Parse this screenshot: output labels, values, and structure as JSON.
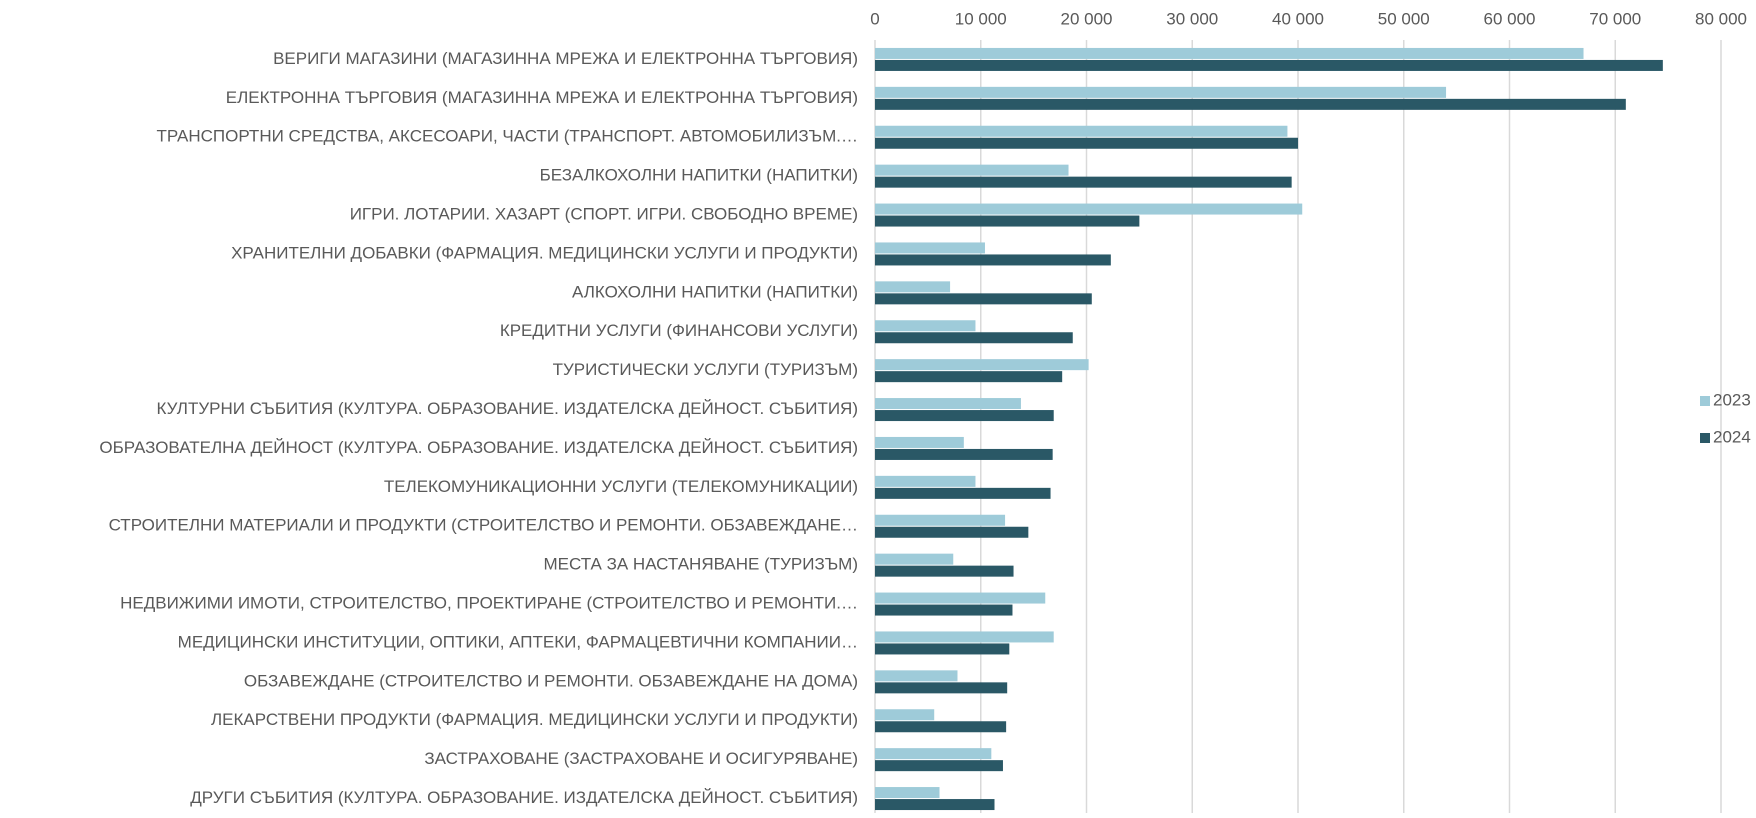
{
  "chart_data": {
    "type": "bar",
    "orientation": "horizontal",
    "categories": [
      "ВЕРИГИ МАГАЗИНИ (МАГАЗИННА МРЕЖА И ЕЛЕКТРОННА ТЪРГОВИЯ)",
      "ЕЛЕКТРОННА ТЪРГОВИЯ (МАГАЗИННА МРЕЖА И ЕЛЕКТРОННА ТЪРГОВИЯ)",
      "ТРАНСПОРТНИ СРЕДСТВА, АКСЕСОАРИ, ЧАСТИ (ТРАНСПОРТ. АВТОМОБИЛИЗЪМ.…",
      "БЕЗАЛКОХОЛНИ НАПИТКИ (НАПИТКИ)",
      "ИГРИ. ЛОТАРИИ. ХАЗАРТ (СПОРТ. ИГРИ. СВОБОДНО ВРЕМЕ)",
      "ХРАНИТЕЛНИ ДОБАВКИ (ФАРМАЦИЯ. МЕДИЦИНСКИ УСЛУГИ И ПРОДУКТИ)",
      "АЛКОХОЛНИ НАПИТКИ (НАПИТКИ)",
      "КРЕДИТНИ УСЛУГИ (ФИНАНСОВИ УСЛУГИ)",
      "ТУРИСТИЧЕСКИ УСЛУГИ (ТУРИЗЪМ)",
      "КУЛТУРНИ СЪБИТИЯ (КУЛТУРА. ОБРАЗОВАНИЕ. ИЗДАТЕЛСКА ДЕЙНОСТ. СЪБИТИЯ)",
      "ОБРАЗОВАТЕЛНА ДЕЙНОСТ (КУЛТУРА. ОБРАЗОВАНИЕ. ИЗДАТЕЛСКА ДЕЙНОСТ. СЪБИТИЯ)",
      "ТЕЛЕКОМУНИКАЦИОННИ УСЛУГИ (ТЕЛЕКОМУНИКАЦИИ)",
      "СТРОИТЕЛНИ МАТЕРИАЛИ И ПРОДУКТИ (СТРОИТЕЛСТВО И РЕМОНТИ. ОБЗАВЕЖДАНЕ…",
      "МЕСТА ЗА НАСТАНЯВАНЕ (ТУРИЗЪМ)",
      "НЕДВИЖИМИ ИМОТИ, СТРОИТЕЛСТВО, ПРОЕКТИРАНЕ (СТРОИТЕЛСТВО И РЕМОНТИ.…",
      "МЕДИЦИНСКИ ИНСТИТУЦИИ, ОПТИКИ, АПТЕКИ, ФАРМАЦЕВТИЧНИ КОМПАНИИ…",
      "ОБЗАВЕЖДАНЕ (СТРОИТЕЛСТВО И РЕМОНТИ. ОБЗАВЕЖДАНЕ НА ДОМА)",
      "ЛЕКАРСТВЕНИ ПРОДУКТИ (ФАРМАЦИЯ. МЕДИЦИНСКИ УСЛУГИ И ПРОДУКТИ)",
      "ЗАСТРАХОВАНЕ (ЗАСТРАХОВАНЕ И ОСИГУРЯВАНЕ)",
      "ДРУГИ СЪБИТИЯ (КУЛТУРА. ОБРАЗОВАНИЕ. ИЗДАТЕЛСКА ДЕЙНОСТ. СЪБИТИЯ)"
    ],
    "series": [
      {
        "name": "2023",
        "color": "#9ecbd9",
        "values": [
          67000,
          54000,
          39000,
          18300,
          40400,
          10400,
          7100,
          9500,
          20200,
          13800,
          8400,
          9500,
          12300,
          7400,
          16100,
          16900,
          7800,
          5600,
          11000,
          6100
        ]
      },
      {
        "name": "2024",
        "color": "#2a5866",
        "values": [
          74500,
          71000,
          40000,
          39400,
          25000,
          22300,
          20500,
          18700,
          17700,
          16900,
          16800,
          16600,
          14500,
          13100,
          13000,
          12700,
          12500,
          12400,
          12100,
          11300
        ]
      }
    ],
    "xlim": [
      0,
      80000
    ],
    "xticks": [
      0,
      {
        "value": 10000,
        "label": "10 000"
      },
      {
        "value": 20000,
        "label": "20 000"
      },
      {
        "value": 30000,
        "label": "30 000"
      },
      {
        "value": 40000,
        "label": "40 000"
      },
      {
        "value": 50000,
        "label": "50 000"
      },
      {
        "value": 60000,
        "label": "60 000"
      },
      {
        "value": 70000,
        "label": "70 000"
      },
      {
        "value": 80000,
        "label": "80 000"
      }
    ],
    "grid": true,
    "legend": "right"
  }
}
